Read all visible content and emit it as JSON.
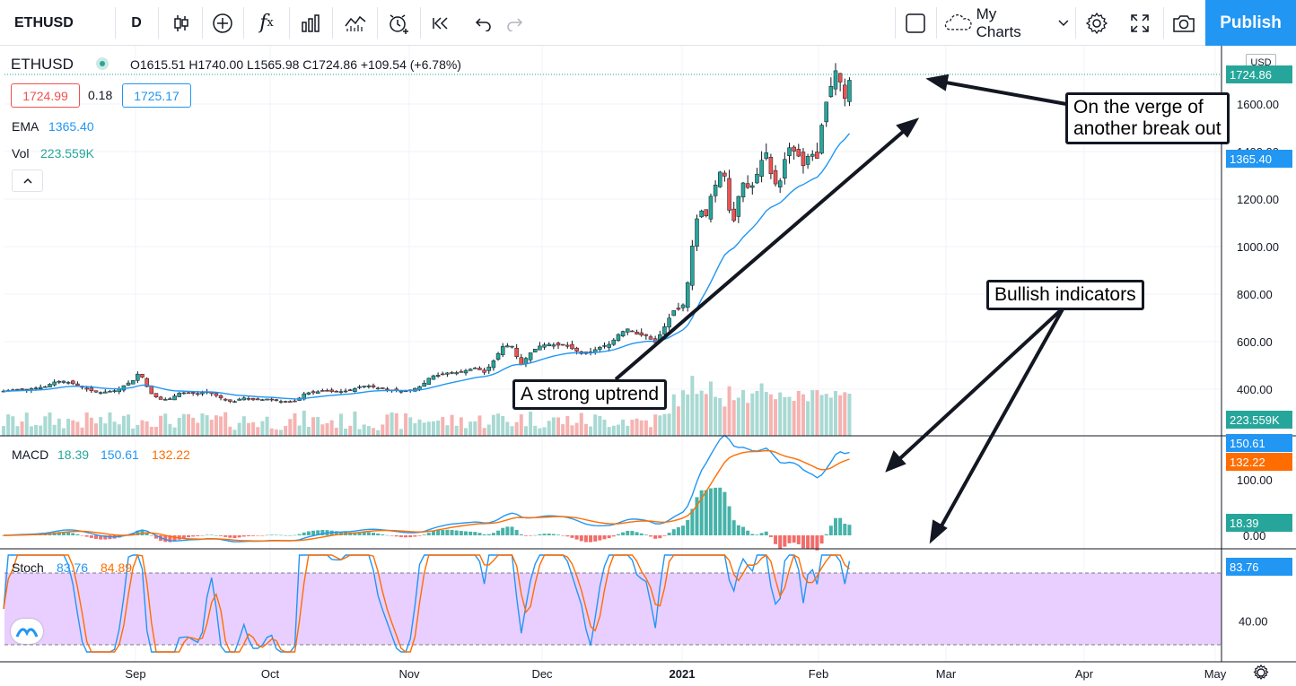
{
  "toolbar": {
    "symbol": "ETHUSD",
    "interval": "D",
    "my_charts": "My Charts",
    "publish": "Publish"
  },
  "legend": {
    "symbol": "ETHUSD",
    "ohlc": "O1615.51 H1740.00 L1565.98 C1724.86 +109.54 (+6.78%)",
    "bid": "1724.99",
    "spread": "0.18",
    "ask": "1725.17",
    "ema_label": "EMA",
    "ema_value": "1365.40",
    "vol_label": "Vol",
    "vol_value": "223.559K",
    "macd_label": "MACD",
    "macd_hist": "18.39",
    "macd_line": "150.61",
    "macd_signal": "132.22",
    "stoch_label": "Stoch",
    "stoch_k": "83.76",
    "stoch_d": "84.89"
  },
  "price_axis": {
    "currency": "USD",
    "ticks": [
      "1600.00",
      "1400.00",
      "1200.00",
      "1000.00",
      "800.00",
      "600.00",
      "400.00"
    ],
    "macd_ticks": [
      "100.00",
      "0.00"
    ],
    "stoch_ticks": [
      "40.00"
    ],
    "last_price_label": "1724.86",
    "ema_label": "1365.40",
    "vol_label": "223.559K",
    "macd_line_label": "150.61",
    "macd_signal_label": "132.22",
    "macd_hist_label": "18.39",
    "stoch_k_label": "83.76"
  },
  "time_axis": [
    "Sep",
    "Oct",
    "Nov",
    "Dec",
    "2021",
    "Feb",
    "Mar",
    "Apr",
    "May"
  ],
  "annotations": {
    "breakout": [
      "On the verge of",
      "another break out"
    ],
    "bullish": "Bullish indicators",
    "uptrend": "A strong uptrend"
  },
  "colors": {
    "up": "#26a69a",
    "down": "#ef5350",
    "ema": "#2196f3",
    "macd": "#2196f3",
    "signal": "#ff6d00",
    "stoch_band": "#e9cfff",
    "accent": "#2196f3"
  },
  "chart_data": {
    "type": "candlestick",
    "symbol": "ETHUSD",
    "ylim": [
      250,
      1800
    ],
    "x_ticks": [
      "Sep",
      "Oct",
      "Nov",
      "Dec",
      "2021",
      "Feb",
      "Mar",
      "Apr",
      "May"
    ],
    "close_path": [
      [
        0,
        390
      ],
      [
        10,
        395
      ],
      [
        20,
        400
      ],
      [
        30,
        400
      ],
      [
        40,
        405
      ],
      [
        50,
        410
      ],
      [
        60,
        430
      ],
      [
        70,
        435
      ],
      [
        80,
        425
      ],
      [
        90,
        410
      ],
      [
        100,
        395
      ],
      [
        110,
        385
      ],
      [
        120,
        390
      ],
      [
        130,
        395
      ],
      [
        140,
        420
      ],
      [
        150,
        440
      ],
      [
        155,
        475
      ],
      [
        160,
        440
      ],
      [
        165,
        400
      ],
      [
        170,
        375
      ],
      [
        180,
        355
      ],
      [
        190,
        360
      ],
      [
        200,
        385
      ],
      [
        210,
        385
      ],
      [
        220,
        380
      ],
      [
        230,
        390
      ],
      [
        240,
        375
      ],
      [
        250,
        355
      ],
      [
        260,
        345
      ],
      [
        270,
        365
      ],
      [
        280,
        355
      ],
      [
        290,
        355
      ],
      [
        300,
        360
      ],
      [
        310,
        350
      ],
      [
        320,
        345
      ],
      [
        330,
        350
      ],
      [
        340,
        385
      ],
      [
        350,
        385
      ],
      [
        360,
        395
      ],
      [
        370,
        390
      ],
      [
        380,
        390
      ],
      [
        390,
        395
      ],
      [
        400,
        410
      ],
      [
        410,
        415
      ],
      [
        420,
        405
      ],
      [
        430,
        400
      ],
      [
        440,
        395
      ],
      [
        450,
        390
      ],
      [
        460,
        400
      ],
      [
        470,
        415
      ],
      [
        480,
        455
      ],
      [
        490,
        460
      ],
      [
        500,
        470
      ],
      [
        510,
        470
      ],
      [
        520,
        480
      ],
      [
        530,
        490
      ],
      [
        540,
        470
      ],
      [
        550,
        520
      ],
      [
        560,
        580
      ],
      [
        570,
        585
      ],
      [
        580,
        500
      ],
      [
        590,
        550
      ],
      [
        600,
        580
      ],
      [
        610,
        590
      ],
      [
        620,
        585
      ],
      [
        630,
        585
      ],
      [
        640,
        565
      ],
      [
        650,
        545
      ],
      [
        660,
        560
      ],
      [
        670,
        580
      ],
      [
        680,
        590
      ],
      [
        690,
        635
      ],
      [
        700,
        655
      ],
      [
        710,
        630
      ],
      [
        720,
        625
      ],
      [
        730,
        595
      ],
      [
        740,
        660
      ],
      [
        750,
        730
      ],
      [
        760,
        740
      ],
      [
        765,
        810
      ],
      [
        770,
        970
      ],
      [
        775,
        1090
      ],
      [
        780,
        1180
      ],
      [
        785,
        1090
      ],
      [
        790,
        1200
      ],
      [
        795,
        1230
      ],
      [
        800,
        1300
      ],
      [
        805,
        1330
      ],
      [
        810,
        1260
      ],
      [
        815,
        1050
      ],
      [
        820,
        1160
      ],
      [
        825,
        1250
      ],
      [
        830,
        1280
      ],
      [
        835,
        1230
      ],
      [
        840,
        1270
      ],
      [
        845,
        1320
      ],
      [
        850,
        1380
      ],
      [
        855,
        1400
      ],
      [
        860,
        1280
      ],
      [
        865,
        1260
      ],
      [
        870,
        1280
      ],
      [
        875,
        1380
      ],
      [
        880,
        1420
      ],
      [
        885,
        1400
      ],
      [
        890,
        1380
      ],
      [
        895,
        1340
      ],
      [
        900,
        1380
      ],
      [
        905,
        1390
      ],
      [
        910,
        1360
      ],
      [
        915,
        1500
      ],
      [
        920,
        1600
      ],
      [
        925,
        1660
      ],
      [
        930,
        1745
      ],
      [
        935,
        1720
      ],
      [
        940,
        1600
      ],
      [
        945,
        1690
      ],
      [
        950,
        1724.86
      ]
    ],
    "ema": {
      "last": 1365.4
    },
    "volume_last": "223.559K",
    "macd": {
      "hist": 18.39,
      "macd": 150.61,
      "signal": 132.22,
      "ylim": [
        -15,
        185
      ]
    },
    "stoch": {
      "k": 83.76,
      "d": 84.89,
      "upper_band": 80,
      "lower_band": 20
    }
  }
}
